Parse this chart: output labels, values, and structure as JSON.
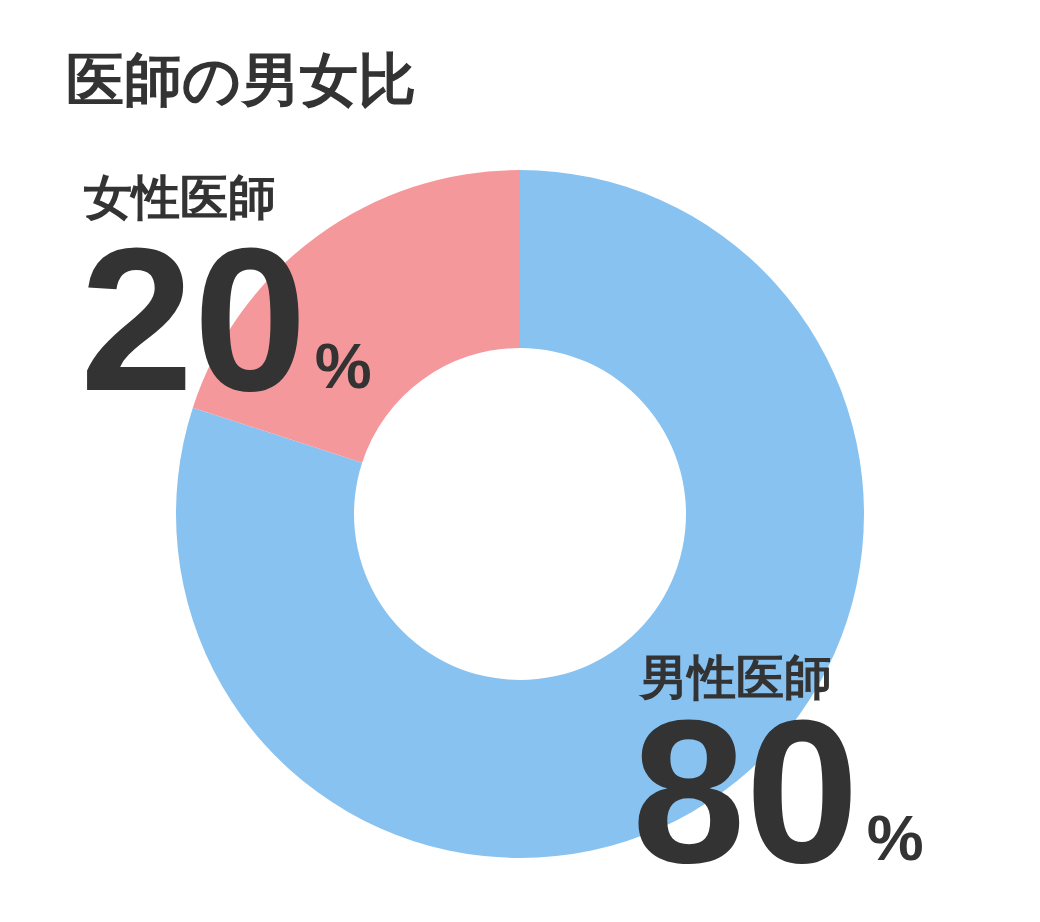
{
  "chart_data": {
    "type": "donut",
    "title": "医師の男女比",
    "categories": [
      "男性医師",
      "女性医師"
    ],
    "values": [
      80,
      20
    ],
    "colors": [
      "#88c2f0",
      "#f5989c"
    ],
    "value_labels": [
      "80%",
      "20%"
    ]
  }
}
